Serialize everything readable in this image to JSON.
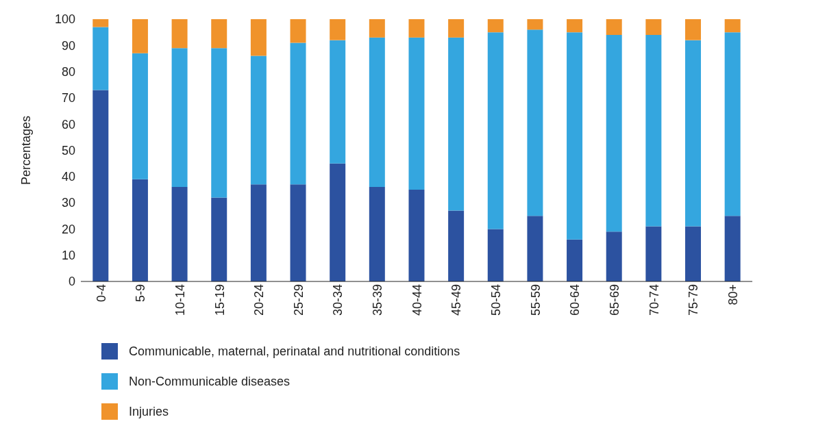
{
  "chart_data": {
    "type": "bar",
    "stacked": true,
    "ylabel": "Percentages",
    "categories": [
      "0-4",
      "5-9",
      "10-14",
      "15-19",
      "20-24",
      "25-29",
      "30-34",
      "35-39",
      "40-44",
      "45-49",
      "50-54",
      "55-59",
      "60-64",
      "65-69",
      "70-74",
      "75-79",
      "80+"
    ],
    "series": [
      {
        "name": "Communicable, maternal, perinatal and nutritional conditions",
        "color": "#2c52a0",
        "values": [
          73,
          39,
          36,
          32,
          37,
          37,
          45,
          36,
          35,
          27,
          20,
          25,
          16,
          19,
          21,
          21,
          25
        ]
      },
      {
        "name": "Non-Communicable diseases",
        "color": "#34a6df",
        "values": [
          24,
          48,
          53,
          57,
          49,
          54,
          47,
          57,
          58,
          66,
          75,
          71,
          79,
          75,
          73,
          71,
          70
        ]
      },
      {
        "name": "Injuries",
        "color": "#f0932b",
        "values": [
          3,
          13,
          11,
          11,
          14,
          9,
          8,
          7,
          7,
          7,
          5,
          4,
          5,
          6,
          6,
          8,
          5
        ]
      }
    ],
    "ylim": [
      0,
      100
    ],
    "yticks": [
      0,
      10,
      20,
      30,
      40,
      50,
      60,
      70,
      80,
      90,
      100
    ],
    "grid": false,
    "legend": "bottom"
  }
}
